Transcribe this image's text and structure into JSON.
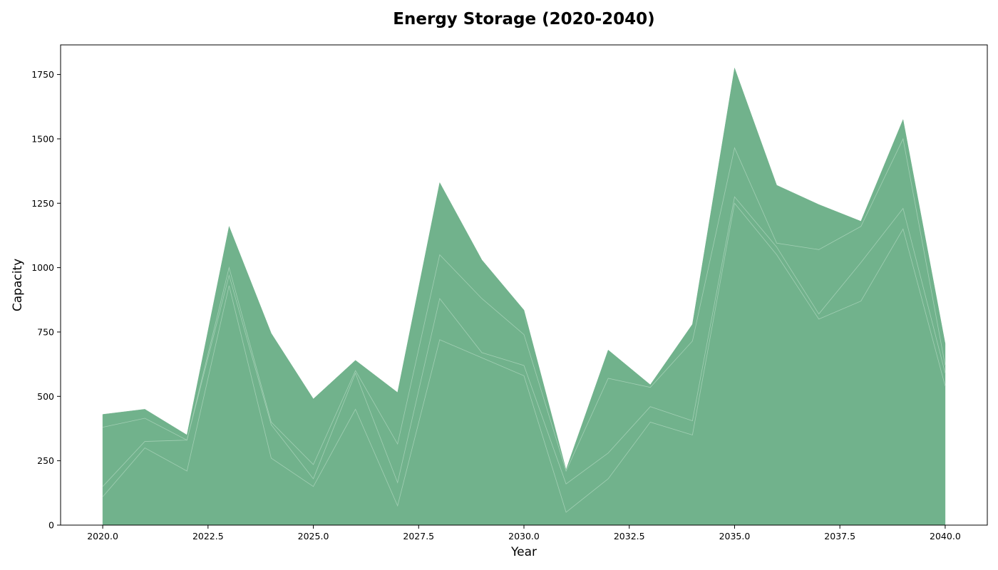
{
  "chart_data": {
    "type": "area",
    "stacked": true,
    "title": "Energy Storage (2020-2040)",
    "xlabel": "Year",
    "ylabel": "Capacity",
    "xlim": [
      2019,
      2041
    ],
    "ylim": [
      0,
      1865
    ],
    "x_ticks": [
      2020.0,
      2022.5,
      2025.0,
      2027.5,
      2030.0,
      2032.5,
      2035.0,
      2037.5,
      2040.0
    ],
    "x_tick_labels": [
      "2020.0",
      "2022.5",
      "2025.0",
      "2027.5",
      "2030.0",
      "2032.5",
      "2035.0",
      "2037.5",
      "2040.0"
    ],
    "y_ticks": [
      0,
      250,
      500,
      750,
      1000,
      1250,
      1500,
      1750
    ],
    "y_tick_labels": [
      "0",
      "250",
      "500",
      "750",
      "1000",
      "1250",
      "1500",
      "1750"
    ],
    "grid": false,
    "legend": "none",
    "fill_color": "#71b28c",
    "separator_color": "#a2cfb4",
    "x": [
      2020,
      2021,
      2022,
      2023,
      2024,
      2025,
      2026,
      2027,
      2028,
      2029,
      2030,
      2031,
      2032,
      2033,
      2034,
      2035,
      2036,
      2037,
      2038,
      2039,
      2040
    ],
    "series": [
      {
        "values": [
          110,
          300,
          210,
          930,
          260,
          150,
          450,
          75,
          720,
          650,
          580,
          50,
          180,
          400,
          350,
          1250,
          1050,
          800,
          870,
          1150,
          540
        ]
      },
      {
        "values": [
          40,
          25,
          120,
          40,
          130,
          30,
          140,
          90,
          160,
          20,
          40,
          110,
          100,
          60,
          55,
          25,
          30,
          20,
          150,
          80,
          50
        ]
      },
      {
        "values": [
          230,
          90,
          0,
          30,
          10,
          55,
          10,
          150,
          170,
          210,
          120,
          50,
          290,
          75,
          310,
          190,
          15,
          250,
          140,
          270,
          30
        ]
      },
      {
        "values": [
          50,
          35,
          20,
          160,
          345,
          255,
          40,
          200,
          280,
          150,
          95,
          5,
          110,
          10,
          65,
          310,
          225,
          175,
          20,
          75,
          85
        ]
      }
    ]
  }
}
